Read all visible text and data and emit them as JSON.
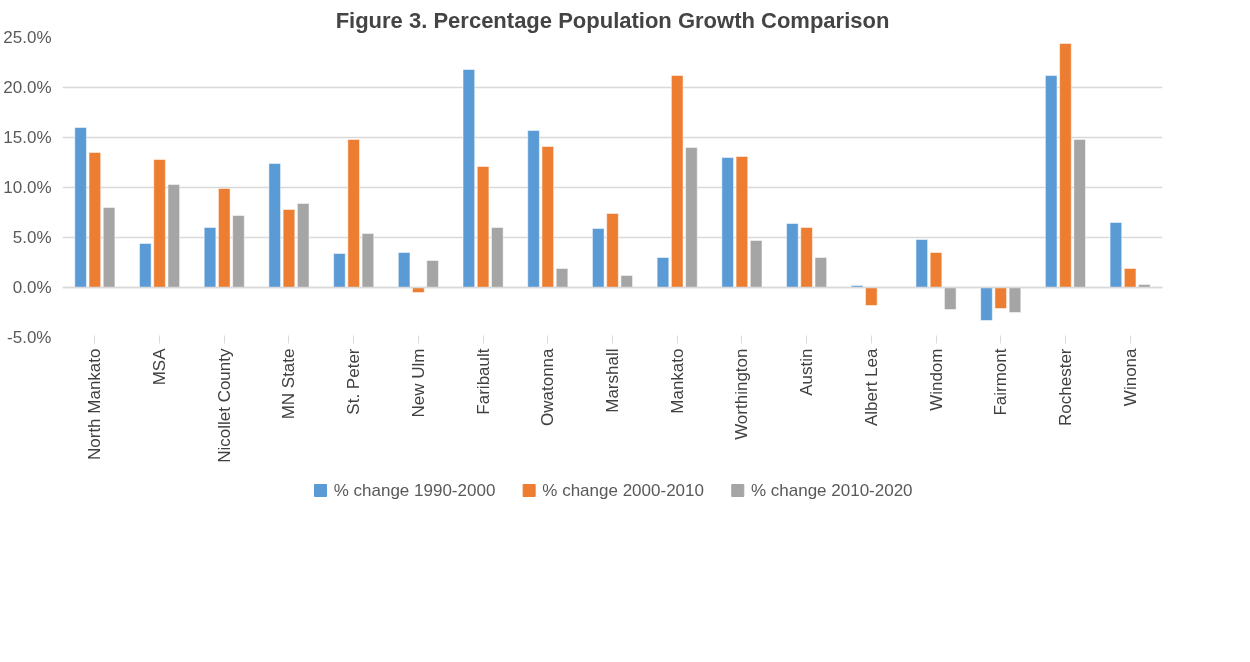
{
  "chart_data": {
    "type": "bar",
    "title": "Figure 3. Percentage Population Growth Comparison",
    "categories": [
      "North Mankato",
      "MSA",
      "Nicollet County",
      "MN State",
      "St. Peter",
      "New Ulm",
      "Faribault",
      "Owatonna",
      "Marshall",
      "Mankato",
      "Worthington",
      "Austin",
      "Albert Lea",
      "Windom",
      "Fairmont",
      "Rochester",
      "Winona"
    ],
    "series": [
      {
        "name": "% change 1990-2000",
        "color": "#5b9bd5",
        "values": [
          16.0,
          4.4,
          6.0,
          12.4,
          3.4,
          3.5,
          21.8,
          15.7,
          5.9,
          3.0,
          13.0,
          6.4,
          0.2,
          4.8,
          -3.3,
          21.2,
          6.5
        ]
      },
      {
        "name": "% change 2000-2010",
        "color": "#ed7d31",
        "values": [
          13.5,
          12.8,
          9.9,
          7.8,
          14.8,
          -0.5,
          12.1,
          14.1,
          7.4,
          21.2,
          13.1,
          6.0,
          -1.8,
          3.5,
          -2.1,
          24.4,
          1.9
        ]
      },
      {
        "name": "% change 2010-2020",
        "color": "#a5a5a5",
        "values": [
          8.0,
          10.3,
          7.2,
          8.4,
          5.4,
          2.7,
          6.0,
          1.9,
          1.2,
          14.0,
          4.7,
          3.0,
          null,
          -2.2,
          -2.5,
          14.8,
          0.3
        ]
      }
    ],
    "ylim": [
      -5,
      25
    ],
    "yticks": [
      {
        "value": -5,
        "label": "-5.0%"
      },
      {
        "value": 0,
        "label": "0.0%"
      },
      {
        "value": 5,
        "label": "5.0%"
      },
      {
        "value": 10,
        "label": "10.0%"
      },
      {
        "value": 15,
        "label": "15.0%"
      },
      {
        "value": 20,
        "label": "20.0%"
      },
      {
        "value": 25,
        "label": "25.0%"
      }
    ],
    "grid": "y",
    "legend": "bottom"
  }
}
